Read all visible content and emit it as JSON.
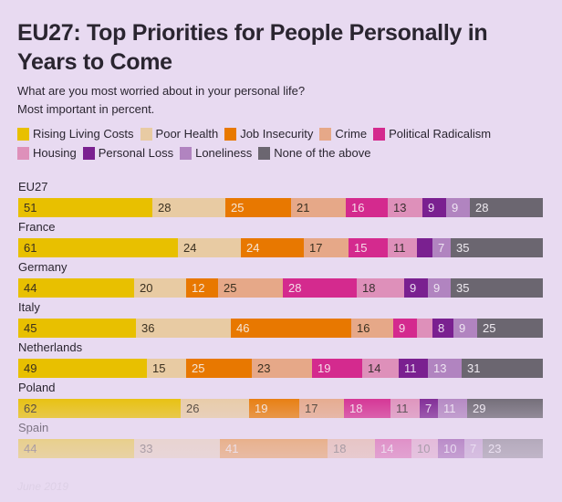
{
  "chart_data": {
    "type": "bar",
    "orientation": "horizontal-stacked",
    "title": "EU27: Top Priorities for People Personally in Years to Come",
    "subtitle_lines": [
      "What are you most worried about in your personal life?",
      "Most important in percent."
    ],
    "legend_placement": "top",
    "categories": [
      "EU27",
      "France",
      "Germany",
      "Italy",
      "Netherlands",
      "Poland",
      "Spain"
    ],
    "series": [
      {
        "name": "Rising Living Costs",
        "color": "#e8c000",
        "label_color": "#3a3020",
        "values": [
          51,
          61,
          44,
          45,
          49,
          62,
          44
        ]
      },
      {
        "name": "Poor Health",
        "color": "#e8cba3",
        "label_color": "#3a3020",
        "values": [
          28,
          24,
          20,
          36,
          15,
          26,
          33
        ]
      },
      {
        "name": "Job Insecurity",
        "color": "#e87800",
        "label_color": "#f5e6d6",
        "values": [
          25,
          24,
          12,
          46,
          25,
          19,
          41
        ]
      },
      {
        "name": "Crime",
        "color": "#e6a888",
        "label_color": "#3a3020",
        "values": [
          21,
          17,
          25,
          16,
          23,
          17,
          18
        ]
      },
      {
        "name": "Political Radicalism",
        "color": "#d42a8e",
        "label_color": "#f6dbe9",
        "values": [
          16,
          15,
          28,
          9,
          19,
          18,
          14
        ]
      },
      {
        "name": "Housing",
        "color": "#de90ba",
        "label_color": "#3a3030",
        "values": [
          13,
          11,
          18,
          6,
          14,
          11,
          10
        ]
      },
      {
        "name": "Personal Loss",
        "color": "#7a2090",
        "label_color": "#eadcf0",
        "values": [
          9,
          6,
          9,
          8,
          11,
          7,
          10
        ]
      },
      {
        "name": "Loneliness",
        "color": "#b184c0",
        "label_color": "#eee4f2",
        "values": [
          9,
          7,
          9,
          9,
          13,
          11,
          7
        ]
      },
      {
        "name": "None of the above",
        "color": "#6b6670",
        "label_color": "#eeeaf0",
        "values": [
          28,
          35,
          35,
          25,
          31,
          29,
          23
        ]
      }
    ],
    "hidden_labels": [
      [
        1,
        6
      ],
      [
        3,
        5
      ]
    ],
    "xlabel": "",
    "ylabel": "",
    "row_total": 200
  },
  "footer": "June 2019"
}
